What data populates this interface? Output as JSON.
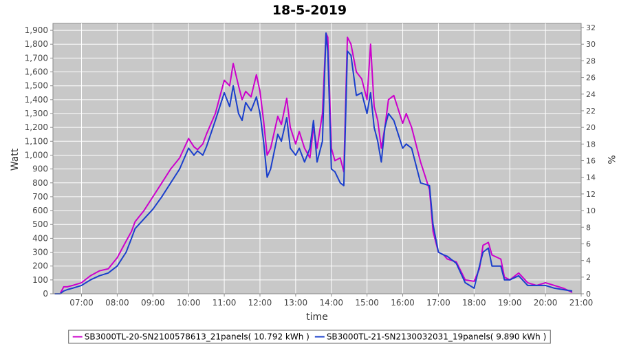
{
  "chart_data": {
    "type": "line",
    "title": "18-5-2019",
    "xlabel": "time",
    "ylabel": "Watt",
    "y2label": "%",
    "xlim": [
      6.2,
      21.0
    ],
    "ylim": [
      0,
      1950
    ],
    "y2lim": [
      0,
      32.5
    ],
    "x_ticks": [
      "07:00",
      "08:00",
      "09:00",
      "10:00",
      "11:00",
      "12:00",
      "13:00",
      "14:00",
      "15:00",
      "16:00",
      "17:00",
      "18:00",
      "19:00",
      "20:00",
      "21:00"
    ],
    "x_tick_values": [
      7,
      8,
      9,
      10,
      11,
      12,
      13,
      14,
      15,
      16,
      17,
      18,
      19,
      20,
      21
    ],
    "y_ticks": [
      "0",
      "100",
      "200",
      "300",
      "400",
      "500",
      "600",
      "700",
      "800",
      "900",
      "1,000",
      "1,100",
      "1,200",
      "1,300",
      "1,400",
      "1,500",
      "1,600",
      "1,700",
      "1,800",
      "1,900"
    ],
    "y_tick_values": [
      0,
      100,
      200,
      300,
      400,
      500,
      600,
      700,
      800,
      900,
      1000,
      1100,
      1200,
      1300,
      1400,
      1500,
      1600,
      1700,
      1800,
      1900
    ],
    "y2_ticks": [
      "0",
      "2",
      "4",
      "6",
      "8",
      "10",
      "12",
      "14",
      "16",
      "18",
      "20",
      "22",
      "24",
      "26",
      "28",
      "30",
      "32"
    ],
    "y2_tick_values": [
      0,
      2,
      4,
      6,
      8,
      10,
      12,
      14,
      16,
      18,
      20,
      22,
      24,
      26,
      28,
      30,
      32
    ],
    "grid": true,
    "plot_background": "#c8c8c8",
    "legend_position": "bottom",
    "series": [
      {
        "name": "SB3000TL-20-SN2100578613_21panels( 10.792 kWh )",
        "color": "#cc00cc",
        "x": [
          6.25,
          6.4,
          6.5,
          6.6,
          6.75,
          7.0,
          7.25,
          7.5,
          7.75,
          8.0,
          8.25,
          8.4,
          8.5,
          8.75,
          9.0,
          9.25,
          9.5,
          9.75,
          10.0,
          10.15,
          10.25,
          10.4,
          10.5,
          10.75,
          11.0,
          11.15,
          11.25,
          11.4,
          11.5,
          11.6,
          11.75,
          11.9,
          12.0,
          12.1,
          12.2,
          12.3,
          12.5,
          12.6,
          12.75,
          12.85,
          13.0,
          13.1,
          13.25,
          13.4,
          13.5,
          13.6,
          13.75,
          13.85,
          13.9,
          14.0,
          14.1,
          14.25,
          14.35,
          14.45,
          14.55,
          14.7,
          14.85,
          15.0,
          15.1,
          15.2,
          15.3,
          15.4,
          15.5,
          15.6,
          15.75,
          16.0,
          16.1,
          16.25,
          16.4,
          16.5,
          16.75,
          16.85,
          17.0,
          17.15,
          17.25,
          17.5,
          17.75,
          18.0,
          18.15,
          18.25,
          18.4,
          18.5,
          18.75,
          18.85,
          19.0,
          19.25,
          19.5,
          19.75,
          20.0,
          20.25,
          20.5,
          20.75
        ],
        "values": [
          0,
          0,
          50,
          50,
          60,
          80,
          130,
          165,
          180,
          260,
          380,
          450,
          520,
          600,
          700,
          800,
          900,
          980,
          1120,
          1060,
          1040,
          1080,
          1150,
          1300,
          1540,
          1500,
          1660,
          1500,
          1400,
          1460,
          1420,
          1580,
          1460,
          1250,
          1000,
          1050,
          1280,
          1220,
          1410,
          1200,
          1080,
          1170,
          1050,
          980,
          1200,
          1050,
          1300,
          1880,
          1850,
          1050,
          960,
          980,
          880,
          1850,
          1800,
          1600,
          1550,
          1400,
          1800,
          1350,
          1250,
          1050,
          1200,
          1400,
          1430,
          1230,
          1300,
          1200,
          1050,
          950,
          750,
          450,
          300,
          280,
          250,
          230,
          100,
          90,
          180,
          350,
          370,
          280,
          250,
          120,
          100,
          150,
          80,
          60,
          80,
          60,
          40,
          10
        ]
      },
      {
        "name": "SB3000TL-21-SN2130032031_19panels( 9.890 kWh )",
        "color": "#1a3fcc",
        "x": [
          6.25,
          6.4,
          6.5,
          6.6,
          6.75,
          7.0,
          7.25,
          7.5,
          7.75,
          8.0,
          8.25,
          8.4,
          8.5,
          8.75,
          9.0,
          9.25,
          9.5,
          9.75,
          10.0,
          10.15,
          10.25,
          10.4,
          10.5,
          10.75,
          11.0,
          11.15,
          11.25,
          11.4,
          11.5,
          11.6,
          11.75,
          11.9,
          12.0,
          12.1,
          12.2,
          12.3,
          12.5,
          12.6,
          12.75,
          12.85,
          13.0,
          13.1,
          13.25,
          13.4,
          13.5,
          13.6,
          13.75,
          13.85,
          13.9,
          14.0,
          14.1,
          14.25,
          14.35,
          14.45,
          14.55,
          14.7,
          14.85,
          15.0,
          15.1,
          15.2,
          15.3,
          15.4,
          15.5,
          15.6,
          15.75,
          16.0,
          16.1,
          16.25,
          16.4,
          16.5,
          16.75,
          16.85,
          17.0,
          17.15,
          17.25,
          17.5,
          17.75,
          18.0,
          18.15,
          18.25,
          18.4,
          18.5,
          18.75,
          18.85,
          19.0,
          19.25,
          19.5,
          19.75,
          20.0,
          20.25,
          20.5,
          20.75
        ],
        "values": [
          0,
          0,
          20,
          30,
          40,
          60,
          100,
          130,
          150,
          200,
          300,
          400,
          470,
          540,
          610,
          700,
          800,
          900,
          1050,
          1000,
          1030,
          1000,
          1060,
          1250,
          1450,
          1350,
          1500,
          1300,
          1250,
          1380,
          1320,
          1420,
          1300,
          1100,
          840,
          900,
          1150,
          1100,
          1270,
          1050,
          1000,
          1050,
          950,
          1050,
          1250,
          950,
          1100,
          1880,
          1750,
          900,
          880,
          800,
          780,
          1750,
          1720,
          1430,
          1450,
          1300,
          1450,
          1200,
          1100,
          950,
          1200,
          1300,
          1250,
          1050,
          1080,
          1050,
          900,
          800,
          780,
          500,
          300,
          280,
          270,
          220,
          80,
          40,
          200,
          300,
          330,
          200,
          200,
          100,
          100,
          130,
          60,
          60,
          60,
          40,
          30,
          20
        ]
      }
    ]
  }
}
